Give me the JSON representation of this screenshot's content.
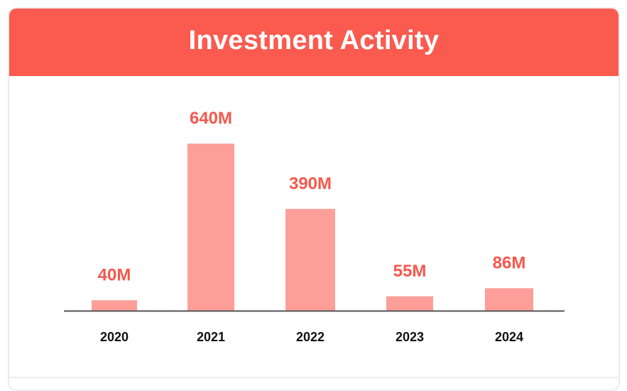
{
  "header": {
    "title": "Investment Activity"
  },
  "colors": {
    "header_bg": "#fb5a4f",
    "bar_fill": "#fe9e99",
    "value_label": "#f5584d",
    "axis_line": "#555555",
    "category_label": "#111111"
  },
  "chart_data": {
    "type": "bar",
    "title": "Investment Activity",
    "categories": [
      "2020",
      "2021",
      "2022",
      "2023",
      "2024"
    ],
    "values": [
      40,
      640,
      390,
      55,
      86
    ],
    "value_labels": [
      "40M",
      "640M",
      "390M",
      "55M",
      "86M"
    ],
    "unit": "M",
    "xlabel": "",
    "ylabel": "",
    "ylim": [
      0,
      640
    ],
    "grid": false,
    "legend": "none"
  }
}
